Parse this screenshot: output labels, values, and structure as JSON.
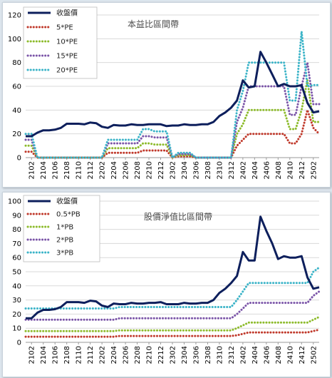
{
  "chart_data": [
    {
      "type": "line",
      "title": "本益比區間帶",
      "ylim": [
        0,
        120
      ],
      "yticks": [
        0,
        20,
        40,
        60,
        80,
        100,
        120
      ],
      "x": [
        "2101",
        "2102",
        "2103",
        "2104",
        "2105",
        "2106",
        "2107",
        "2108",
        "2109",
        "2110",
        "2111",
        "2112",
        "2201",
        "2202",
        "2203",
        "2204",
        "2205",
        "2206",
        "2207",
        "2208",
        "2209",
        "2210",
        "2211",
        "2212",
        "2301",
        "2302",
        "2303",
        "2304",
        "2305",
        "2306",
        "2307",
        "2308",
        "2309",
        "2310",
        "2311",
        "2312",
        "2401",
        "2402",
        "2403",
        "2404",
        "2405",
        "2406",
        "2407",
        "2408",
        "2409",
        "2410",
        "2411",
        "2412",
        "2501",
        "2502",
        "2503"
      ],
      "xticks": [
        "2102",
        "2104",
        "2106",
        "2108",
        "2110",
        "2112",
        "2202",
        "2204",
        "2206",
        "2208",
        "2210",
        "2212",
        "2302",
        "2304",
        "2306",
        "2308",
        "2310",
        "2312",
        "2402",
        "2404",
        "2406",
        "2408",
        "2410",
        "2412",
        "2502"
      ],
      "legend_position": "top-left",
      "series": [
        {
          "name": "收盤價",
          "color": "#0d1f5c",
          "style": "solid",
          "values": [
            18,
            18,
            21,
            23,
            23,
            23.5,
            25,
            28.5,
            28.5,
            28.5,
            28,
            29.5,
            29,
            26,
            25,
            27.5,
            27,
            27,
            28,
            27.5,
            27.5,
            28,
            28,
            28,
            26.5,
            27,
            27,
            28,
            27.5,
            27.5,
            28,
            28,
            30,
            35,
            38,
            42,
            48,
            65,
            59,
            60,
            89,
            80,
            70,
            60,
            62,
            60,
            60,
            61,
            46,
            38,
            39
          ]
        },
        {
          "name": "5*PE",
          "color": "#c0392b",
          "style": "dotted",
          "values": [
            5,
            5,
            0,
            0,
            0,
            0,
            0,
            0,
            0,
            0,
            0,
            0,
            0,
            0,
            4,
            4,
            4,
            4,
            4,
            4,
            6,
            6,
            6,
            6,
            6,
            0,
            1,
            1,
            1,
            0,
            0,
            0,
            0,
            0,
            0,
            0,
            10,
            15,
            20,
            20,
            20,
            20,
            20,
            20,
            20,
            12,
            12,
            20,
            40,
            25,
            20
          ]
        },
        {
          "name": "10*PE",
          "color": "#8dbb2c",
          "style": "dotted",
          "values": [
            10,
            10,
            0,
            0,
            0,
            0,
            0,
            0,
            0,
            0,
            0,
            0,
            0,
            0,
            8,
            8,
            8,
            8,
            8,
            8,
            12,
            12,
            11,
            11,
            11,
            0,
            2,
            2,
            2,
            0,
            0,
            0,
            0,
            0,
            0,
            0,
            20,
            28,
            40,
            40,
            40,
            40,
            40,
            40,
            40,
            24,
            24,
            40,
            65,
            30,
            30
          ]
        },
        {
          "name": "15*PE",
          "color": "#7b55a8",
          "style": "dotted",
          "values": [
            15,
            15,
            0,
            0,
            0,
            0,
            0,
            0,
            0,
            0,
            0,
            0,
            0,
            0,
            12,
            12,
            12,
            12,
            12,
            12,
            18,
            18,
            17,
            17,
            17,
            0,
            3,
            3,
            3,
            0,
            0,
            0,
            0,
            0,
            0,
            0,
            30,
            42,
            60,
            60,
            60,
            60,
            60,
            60,
            60,
            36,
            36,
            60,
            80,
            45,
            45
          ]
        },
        {
          "name": "20*PE",
          "color": "#3cb4c8",
          "style": "dotted",
          "values": [
            20,
            20,
            0,
            0,
            0,
            0,
            0,
            0,
            0,
            0,
            0,
            0,
            0,
            0,
            15,
            15,
            15,
            15,
            15,
            15,
            24,
            24,
            22,
            22,
            22,
            0,
            4,
            4,
            4,
            0,
            0,
            0,
            0,
            0,
            0,
            0,
            40,
            56,
            80,
            80,
            80,
            80,
            80,
            80,
            80,
            48,
            48,
            106,
            60,
            61,
            61
          ]
        }
      ]
    },
    {
      "type": "line",
      "title": "股價淨值比區間帶",
      "ylim": [
        0,
        100
      ],
      "yticks": [
        0,
        10,
        20,
        30,
        40,
        50,
        60,
        70,
        80,
        90,
        100
      ],
      "x": [
        "2101",
        "2102",
        "2103",
        "2104",
        "2105",
        "2106",
        "2107",
        "2108",
        "2109",
        "2110",
        "2111",
        "2112",
        "2201",
        "2202",
        "2203",
        "2204",
        "2205",
        "2206",
        "2207",
        "2208",
        "2209",
        "2210",
        "2211",
        "2212",
        "2301",
        "2302",
        "2303",
        "2304",
        "2305",
        "2306",
        "2307",
        "2308",
        "2309",
        "2310",
        "2311",
        "2312",
        "2401",
        "2402",
        "2403",
        "2404",
        "2405",
        "2406",
        "2407",
        "2408",
        "2409",
        "2410",
        "2411",
        "2412",
        "2501",
        "2502",
        "2503"
      ],
      "xticks": [
        "2102",
        "2104",
        "2106",
        "2108",
        "2110",
        "2112",
        "2202",
        "2204",
        "2206",
        "2208",
        "2210",
        "2212",
        "2302",
        "2304",
        "2306",
        "2308",
        "2310",
        "2312",
        "2402",
        "2404",
        "2406",
        "2408",
        "2410",
        "2412",
        "2502"
      ],
      "legend_position": "top-left",
      "series": [
        {
          "name": "收盤價",
          "color": "#0d1f5c",
          "style": "solid",
          "values": [
            17,
            17,
            21,
            23,
            23,
            23.5,
            25,
            28.5,
            28.5,
            28.5,
            28,
            29.5,
            29,
            26,
            25,
            27.5,
            27,
            27,
            28,
            27.5,
            27.5,
            28,
            28,
            28.5,
            27,
            27,
            27,
            28,
            27.5,
            27.5,
            28,
            28,
            30,
            35,
            38,
            42,
            47,
            64,
            58,
            58,
            89,
            79,
            70,
            59,
            61,
            60,
            60,
            61,
            46,
            38,
            39
          ]
        },
        {
          "name": "0.5*PB",
          "color": "#c0392b",
          "style": "dotted",
          "values": [
            4,
            4,
            4,
            4,
            4,
            4,
            4,
            4,
            4,
            4,
            4,
            4,
            4,
            4,
            4,
            4,
            4.5,
            4.5,
            4.5,
            4.5,
            4.5,
            4.5,
            4.5,
            4.5,
            4.5,
            4.5,
            4.5,
            4.5,
            4.5,
            4.5,
            4.5,
            4.5,
            4.5,
            4.5,
            4.5,
            4.5,
            5,
            6,
            7,
            7,
            7,
            7,
            7,
            7,
            7,
            7,
            7,
            7,
            7,
            8,
            9
          ]
        },
        {
          "name": "1*PB",
          "color": "#8dbb2c",
          "style": "dotted",
          "values": [
            8,
            8,
            8,
            8,
            8,
            8,
            8,
            8,
            8,
            8,
            8,
            8,
            8,
            8,
            8,
            8,
            8.5,
            8.5,
            8.5,
            8.5,
            8.5,
            8.5,
            8.5,
            8.5,
            8.5,
            8.5,
            8.5,
            8.5,
            8.5,
            8.5,
            8.5,
            8.5,
            8.5,
            8.5,
            8.5,
            8.5,
            10,
            12,
            14,
            14,
            14,
            14,
            14,
            14,
            14,
            14,
            14,
            14,
            14,
            16,
            18
          ]
        },
        {
          "name": "2*PB",
          "color": "#7b55a8",
          "style": "dotted",
          "values": [
            16,
            16,
            16,
            16,
            16,
            16,
            16,
            16,
            16,
            16,
            16,
            16,
            16,
            16,
            16,
            16,
            17,
            17,
            17,
            17,
            17,
            17,
            17,
            17,
            17,
            17,
            17,
            17,
            17,
            17,
            17,
            17,
            17,
            17,
            17,
            17,
            20,
            24,
            28,
            28,
            28,
            28,
            28,
            28,
            28,
            28,
            28,
            28,
            28,
            33,
            36
          ]
        },
        {
          "name": "3*PB",
          "color": "#3cb4c8",
          "style": "dotted",
          "values": [
            24,
            24,
            24,
            24,
            24,
            24,
            24,
            24,
            24,
            24,
            24,
            24,
            24,
            24,
            24,
            24,
            25,
            25,
            25,
            25,
            25,
            25,
            25,
            25,
            25,
            25,
            25,
            25,
            25,
            25,
            25,
            25,
            25,
            25,
            25,
            25,
            30,
            36,
            42,
            42,
            42,
            42,
            42,
            42,
            42,
            42,
            42,
            42,
            42,
            50,
            53
          ]
        }
      ]
    }
  ]
}
